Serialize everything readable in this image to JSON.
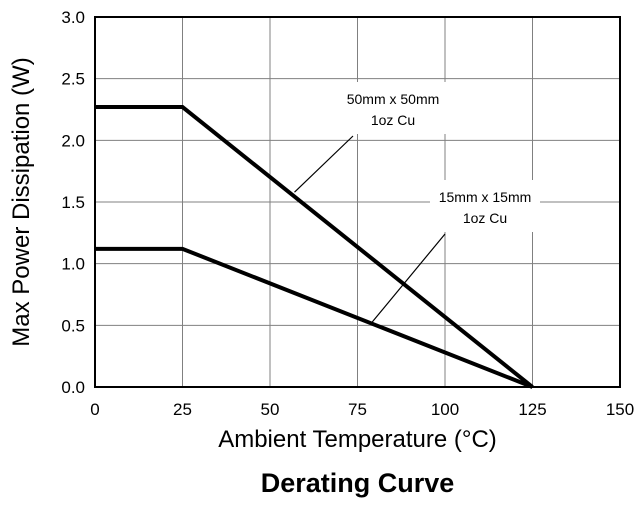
{
  "chart_data": {
    "type": "line",
    "title": "Derating Curve",
    "xlabel": "Ambient Temperature (°C)",
    "ylabel": "Max Power Dissipation (W)",
    "xlim": [
      0,
      150
    ],
    "ylim": [
      0,
      3.0
    ],
    "x_ticks": [
      "0",
      "25",
      "50",
      "75",
      "100",
      "125",
      "150"
    ],
    "y_ticks": [
      "0.0",
      "0.5",
      "1.0",
      "1.5",
      "2.0",
      "2.5",
      "3.0"
    ],
    "grid": true,
    "legend": "none",
    "colors": {
      "line": "#000000",
      "grid": "#808080"
    },
    "series": [
      {
        "label_lines": [
          "50mm x 50mm",
          "1oz Cu"
        ],
        "x": [
          0,
          25,
          125
        ],
        "y": [
          2.27,
          2.27,
          0.0
        ],
        "pointer_to": [
          57,
          1.58
        ]
      },
      {
        "label_lines": [
          "15mm x 15mm",
          "1oz Cu"
        ],
        "x": [
          0,
          25,
          125
        ],
        "y": [
          1.12,
          1.12,
          0.0
        ],
        "pointer_to": [
          79,
          0.52
        ]
      }
    ]
  }
}
